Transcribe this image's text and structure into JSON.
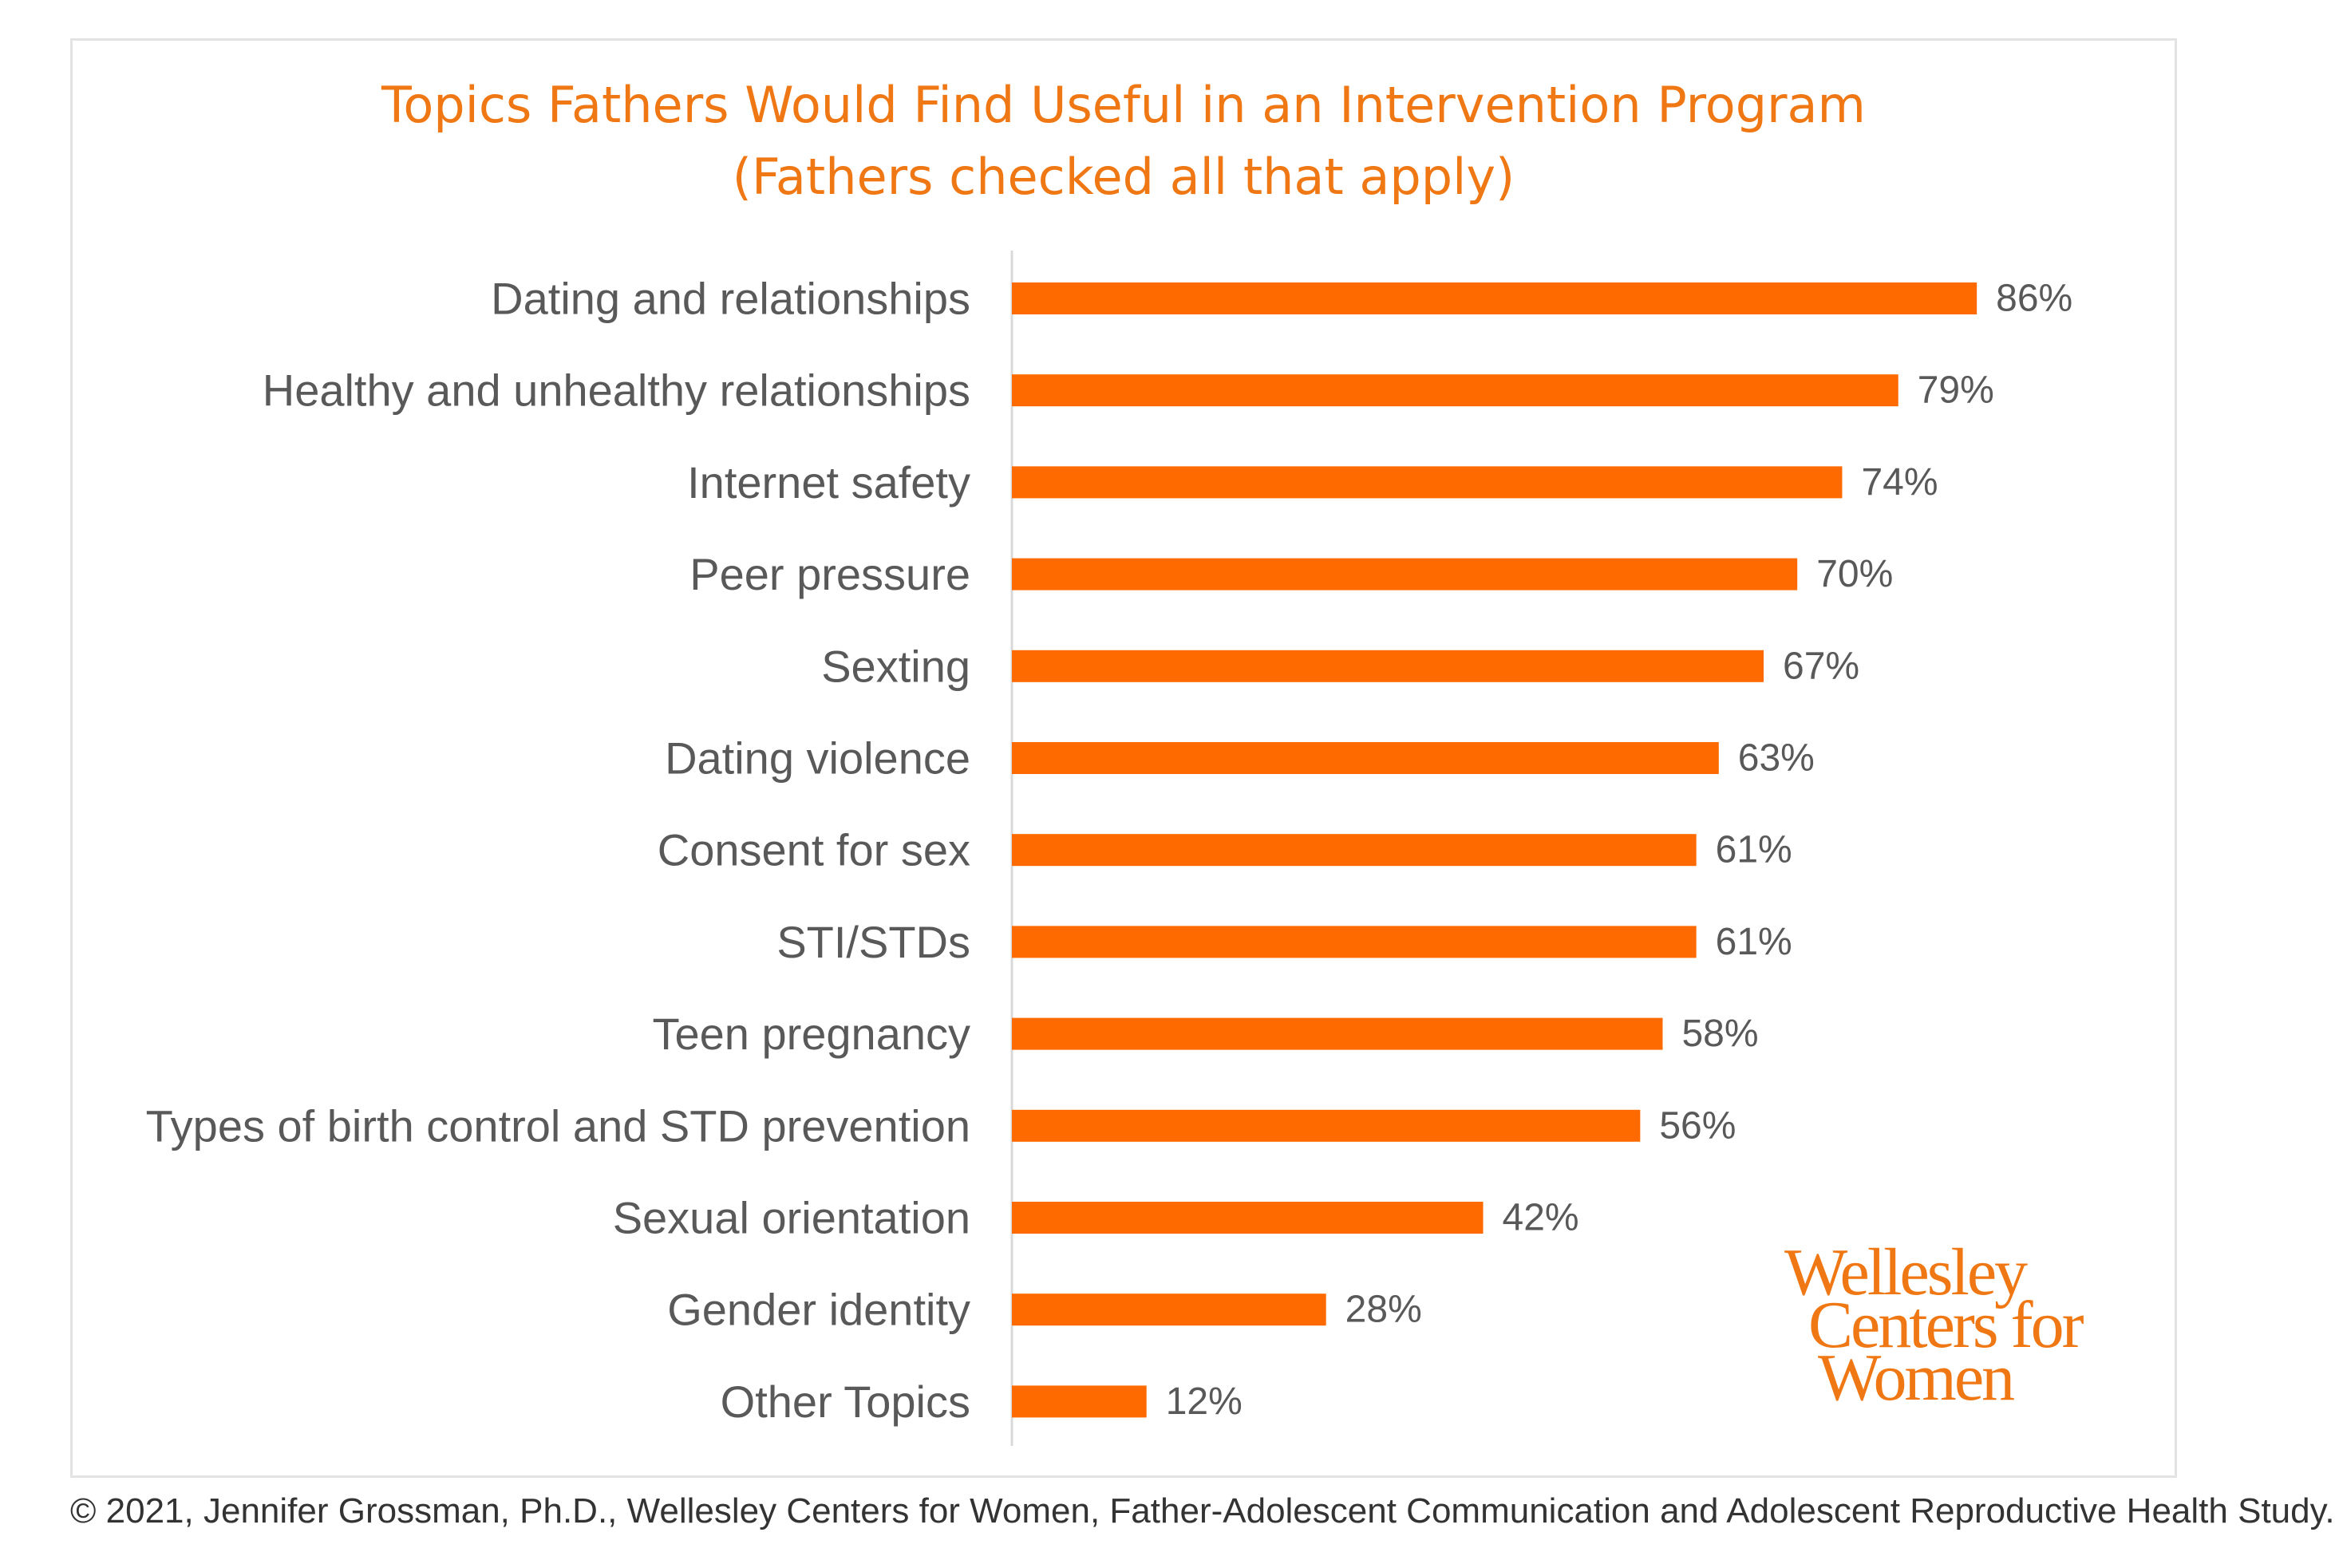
{
  "chart_data": {
    "type": "bar",
    "orientation": "horizontal",
    "title": "Topics Fathers Would Find Useful in an Intervention Program",
    "subtitle": "(Fathers checked all that apply)",
    "categories": [
      "Dating and relationships",
      "Healthy and unhealthy relationships",
      "Internet safety",
      "Peer pressure",
      "Sexting",
      "Dating violence",
      "Consent for sex",
      "STI/STDs",
      "Teen pregnancy",
      "Types of birth control and STD prevention",
      "Sexual orientation",
      "Gender identity",
      "Other Topics"
    ],
    "values": [
      86,
      79,
      74,
      70,
      67,
      63,
      61,
      61,
      58,
      56,
      42,
      28,
      12
    ],
    "value_labels": [
      "86%",
      "79%",
      "74%",
      "70%",
      "67%",
      "63%",
      "61%",
      "61%",
      "58%",
      "56%",
      "42%",
      "28%",
      "12%"
    ],
    "unit": "%",
    "xlim": [
      0,
      100
    ],
    "grid": false,
    "legend": "none",
    "bar_color": "#ff6a00"
  },
  "colors": {
    "title": "#f07814",
    "labels": "#595959",
    "axis": "#d9d9d9"
  },
  "logo": {
    "lines": [
      "Wellesley",
      "Centers for",
      "Women"
    ]
  },
  "footer": "© 2021, Jennifer Grossman, Ph.D., Wellesley Centers for Women, Father-Adolescent Communication and Adolescent Reproductive Health Study."
}
